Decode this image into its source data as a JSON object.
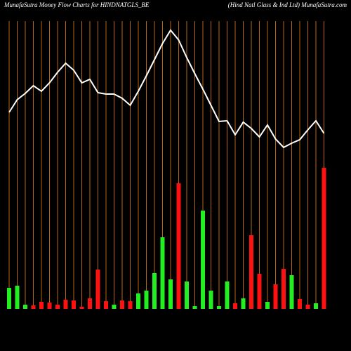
{
  "chart_data": {
    "type": "money-flow",
    "title": "MunafaSutra  Money Flow  Charts for HINDNATGLS_BE",
    "subtitle": "(Hind Natl Glass & Ind Ltd) MunafaSutra.com",
    "ylim": [
      0,
      410
    ],
    "line_color": "#ffffff",
    "grid_color": "#b8650f",
    "line_values": [
      280,
      298,
      307,
      318,
      310,
      322,
      337,
      350,
      340,
      322,
      327,
      308,
      306,
      306,
      300,
      290,
      310,
      332,
      355,
      378,
      397,
      383,
      358,
      335,
      313,
      290,
      267,
      268,
      248,
      266,
      257,
      245,
      262,
      242,
      230,
      236,
      241,
      255,
      268,
      250
    ],
    "bar_values": [
      30,
      33,
      6,
      5,
      10,
      9,
      6,
      13,
      12,
      3,
      15,
      56,
      11,
      6,
      12,
      11,
      22,
      26,
      51,
      102,
      42,
      179,
      39,
      4,
      140,
      26,
      4,
      39,
      8,
      15,
      105,
      50,
      10,
      35,
      57,
      48,
      14,
      6,
      8,
      201
    ],
    "bar_colors": [
      "#22ee22",
      "#22ee22",
      "#22ee22",
      "#ff1111",
      "#ff1111",
      "#ff1111",
      "#ff1111",
      "#ff1111",
      "#ff1111",
      "#ff1111",
      "#ff1111",
      "#ff1111",
      "#ff1111",
      "#22ee22",
      "#ff1111",
      "#ff1111",
      "#22ee22",
      "#22ee22",
      "#22ee22",
      "#22ee22",
      "#22ee22",
      "#ff1111",
      "#22ee22",
      "#22ee22",
      "#22ee22",
      "#22ee22",
      "#22ee22",
      "#22ee22",
      "#ff1111",
      "#22ee22",
      "#ff1111",
      "#ff1111",
      "#22ee22",
      "#ff1111",
      "#ff1111",
      "#22ee22",
      "#ff1111",
      "#ff1111",
      "#22ee22",
      "#ff1111"
    ]
  }
}
